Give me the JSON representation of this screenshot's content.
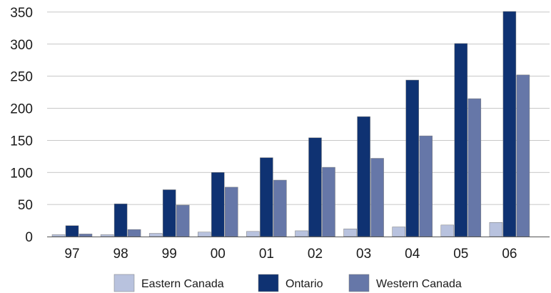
{
  "chart_data": {
    "type": "bar",
    "categories": [
      "97",
      "98",
      "99",
      "00",
      "01",
      "02",
      "03",
      "04",
      "05",
      "06"
    ],
    "series": [
      {
        "name": "Eastern Canada",
        "color": "#b8c2de",
        "values": [
          3,
          3,
          5,
          7,
          8,
          9,
          12,
          15,
          18,
          22
        ]
      },
      {
        "name": "Ontario",
        "color": "#0f3272",
        "values": [
          17,
          51,
          73,
          100,
          123,
          154,
          187,
          244,
          301,
          351
        ]
      },
      {
        "name": "Western Canada",
        "color": "#6677a8",
        "values": [
          4,
          11,
          49,
          77,
          88,
          108,
          122,
          157,
          215,
          252
        ]
      }
    ],
    "yticks": [
      0,
      50,
      100,
      150,
      200,
      250,
      300,
      350
    ],
    "ylim": [
      0,
      351
    ],
    "grid": true,
    "legend_position": "bottom"
  }
}
